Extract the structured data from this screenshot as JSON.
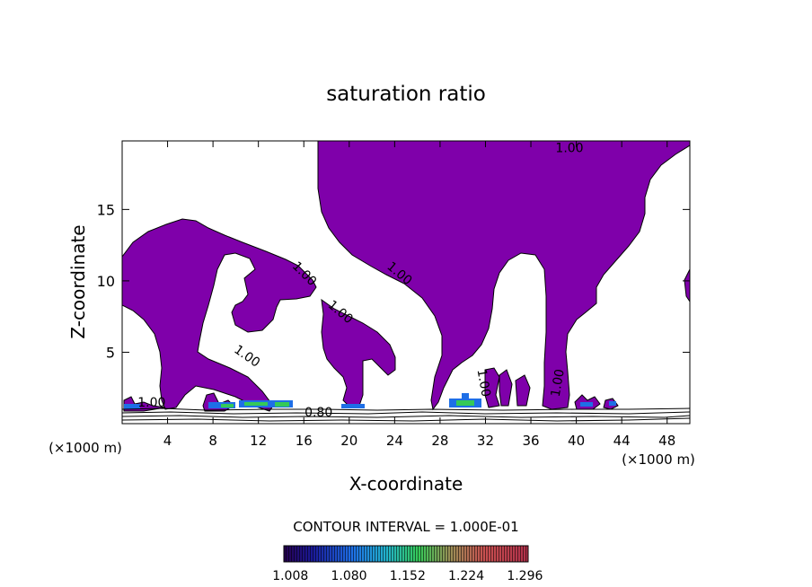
{
  "chart_data": {
    "type": "contour",
    "title": "saturation ratio",
    "xlabel": "X-coordinate",
    "ylabel": "Z-coordinate",
    "x_unit_label": "(×1000 m)",
    "y_unit_label": "(×1000 m)",
    "xlim": [
      0,
      50
    ],
    "ylim": [
      0,
      19.8
    ],
    "x_ticks": [
      4,
      8,
      12,
      16,
      20,
      24,
      28,
      32,
      36,
      40,
      44,
      48
    ],
    "y_ticks": [
      5,
      10,
      15
    ],
    "contour_interval_label": "CONTOUR INTERVAL = 1.000E-01",
    "contour_labels": [
      {
        "text": "1.00",
        "x": 39.4,
        "y": 19.0
      },
      {
        "text": "1.00",
        "x": 15.8,
        "y": 10.3
      },
      {
        "text": "1.00",
        "x": 19.0,
        "y": 7.6
      },
      {
        "text": "1.00",
        "x": 24.2,
        "y": 10.3
      },
      {
        "text": "1.00",
        "x": 10.8,
        "y": 4.5
      },
      {
        "text": "1.00",
        "x": 31.5,
        "y": 2.8
      },
      {
        "text": "1.00",
        "x": 38.7,
        "y": 2.8
      },
      {
        "text": "1.00",
        "x": 2.6,
        "y": 1.2
      },
      {
        "text": "0.80",
        "x": 17.3,
        "y": 0.5
      }
    ],
    "colorbar": {
      "tick_labels": [
        "1.008",
        "1.080",
        "1.152",
        "1.224",
        "1.296"
      ],
      "range": [
        1.0,
        1.3
      ]
    },
    "fill_color": "#7f00aa",
    "colors": {
      "low": "#1a0a8c",
      "mid_blue": "#1e78ff",
      "green": "#3cd25a",
      "red": "#d23c3c"
    }
  }
}
